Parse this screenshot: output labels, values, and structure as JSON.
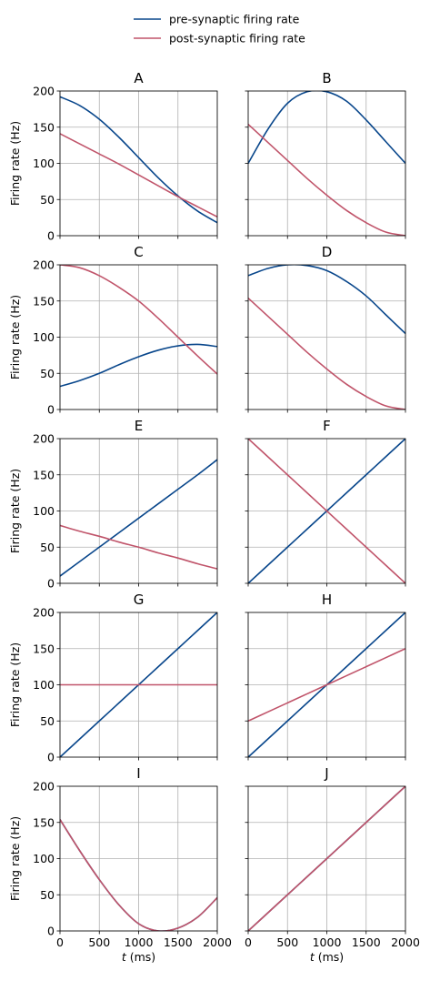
{
  "chart_data": {
    "type": "line",
    "layout": "5 rows x 2 columns grid, shared x and y axes",
    "legend": {
      "placement": "top-center, above the grid",
      "entries": [
        {
          "label": "pre-synaptic firing rate",
          "color": "#08468b"
        },
        {
          "label": "post-synaptic firing rate",
          "color": "#c0546a"
        }
      ]
    },
    "xlabel_prefix": "t",
    "xlabel_suffix": " (ms)",
    "ylabel": "Firing rate (Hz)",
    "xlim": [
      0,
      2000
    ],
    "ylim": [
      0,
      200
    ],
    "xticks": [
      "0",
      "500",
      "1000",
      "1500",
      "2000"
    ],
    "yticks": [
      "0",
      "50",
      "100",
      "150",
      "200"
    ],
    "grid": true,
    "x": [
      0,
      250,
      500,
      750,
      1000,
      1250,
      1500,
      1750,
      2000
    ],
    "panels": [
      {
        "title": "A",
        "pre": [
          192,
          180,
          161,
          136,
          108,
          80,
          55,
          34,
          18
        ],
        "post": [
          141,
          127,
          113,
          99,
          84,
          69,
          54,
          40,
          26
        ]
      },
      {
        "title": "B",
        "pre": [
          100,
          147,
          183,
          199,
          199,
          186,
          160,
          130,
          100
        ],
        "post": [
          154,
          129,
          104,
          79,
          56,
          35,
          18,
          5,
          0
        ]
      },
      {
        "title": "C",
        "pre": [
          32,
          40,
          50,
          62,
          73,
          82,
          88,
          90,
          87
        ],
        "post": [
          200,
          196,
          185,
          169,
          150,
          126,
          100,
          74,
          49
        ]
      },
      {
        "title": "D",
        "pre": [
          185,
          195,
          200,
          199,
          192,
          177,
          157,
          131,
          105
        ],
        "post": [
          154,
          129,
          104,
          79,
          56,
          35,
          18,
          5,
          0
        ]
      },
      {
        "title": "E",
        "pre": [
          10,
          30,
          50,
          70,
          90,
          110,
          130,
          150,
          171
        ],
        "post": [
          80,
          72,
          65,
          57,
          50,
          42,
          35,
          27,
          20
        ]
      },
      {
        "title": "F",
        "pre": [
          0,
          25,
          50,
          75,
          100,
          125,
          150,
          175,
          200
        ],
        "post": [
          200,
          175,
          150,
          125,
          100,
          75,
          50,
          25,
          0
        ]
      },
      {
        "title": "G",
        "pre": [
          0,
          25,
          50,
          75,
          100,
          125,
          150,
          175,
          200
        ],
        "post": [
          100,
          100,
          100,
          100,
          100,
          100,
          100,
          100,
          100
        ]
      },
      {
        "title": "H",
        "pre": [
          0,
          25,
          50,
          75,
          100,
          125,
          150,
          175,
          200
        ],
        "post": [
          50,
          62.5,
          75,
          87.5,
          100,
          112.5,
          125,
          137.5,
          150
        ]
      },
      {
        "title": "I",
        "pre": [
          154,
          111,
          71,
          36,
          10,
          0,
          4,
          19,
          46
        ],
        "post": [
          154,
          111,
          71,
          36,
          10,
          0,
          4,
          19,
          46
        ]
      },
      {
        "title": "J",
        "pre": [
          0,
          25,
          50,
          75,
          100,
          125,
          150,
          175,
          200
        ],
        "post": [
          0,
          25,
          50,
          75,
          100,
          125,
          150,
          175,
          200
        ]
      }
    ]
  }
}
